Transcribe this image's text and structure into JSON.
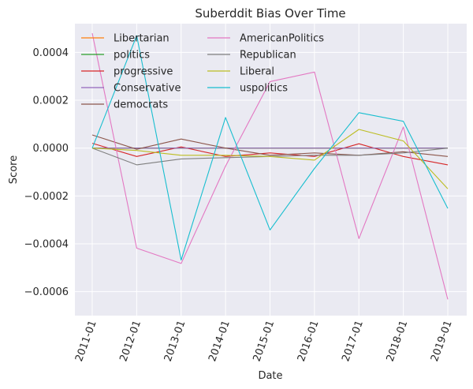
{
  "chart_data": {
    "type": "line",
    "title": "Suberddit Bias Over Time",
    "xlabel": "Date",
    "ylabel": "Score",
    "x": [
      "2011-01",
      "2012-01",
      "2013-01",
      "2014-01",
      "2015-01",
      "2016-01",
      "2017-01",
      "2018-01",
      "2019-01"
    ],
    "yticks": [
      "0.0004",
      "0.0002",
      "0.0000",
      "−0.0002",
      "−0.0004",
      "−0.0006"
    ],
    "ytick_values": [
      0.0004,
      0.0002,
      0.0,
      -0.0002,
      -0.0004,
      -0.0006
    ],
    "ylim": [
      -0.0007,
      0.00052
    ],
    "grid": true,
    "legend_position": "upper-left",
    "series": [
      {
        "name": "Libertarian",
        "color": "#ff7f0e",
        "values": [
          0.0,
          0.0,
          0.0,
          0.0,
          0.0,
          0.0,
          0.0,
          0.0,
          0.0
        ]
      },
      {
        "name": "politics",
        "color": "#2ca02c",
        "values": [
          0.0,
          0.0,
          0.0,
          0.0,
          0.0,
          0.0,
          0.0,
          0.0,
          0.0
        ]
      },
      {
        "name": "progressive",
        "color": "#d62728",
        "values": [
          2e-05,
          -3.5e-05,
          5e-06,
          -3.5e-05,
          -2e-05,
          -3.5e-05,
          1.8e-05,
          -3.5e-05,
          -7e-05
        ]
      },
      {
        "name": "Conservative",
        "color": "#9467bd",
        "values": [
          0.0,
          0.0,
          0.0,
          0.0,
          0.0,
          0.0,
          0.0,
          0.0,
          0.0
        ]
      },
      {
        "name": "democrats",
        "color": "#8c564b",
        "values": [
          5.5e-05,
          -5e-06,
          3.8e-05,
          0.0,
          -3e-05,
          -2e-05,
          -3e-05,
          -1.5e-05,
          -3.5e-05
        ]
      },
      {
        "name": "AmericanPolitics",
        "color": "#e377c2",
        "values": [
          0.00048,
          -0.000418,
          -0.000482,
          -7.5e-05,
          0.000278,
          0.000318,
          -0.000378,
          8.8e-05,
          -0.000632
        ]
      },
      {
        "name": "Republican",
        "color": "#7f7f7f",
        "values": [
          0.0,
          -7e-05,
          -4.5e-05,
          -4e-05,
          -3.5e-05,
          -3e-05,
          -3e-05,
          -2e-05,
          0.0
        ]
      },
      {
        "name": "Liberal",
        "color": "#bcbd22",
        "values": [
          0.0,
          -1e-05,
          -3e-05,
          -3e-05,
          -3.5e-05,
          -5e-05,
          7.8e-05,
          3e-05,
          -0.00017
        ]
      },
      {
        "name": "uspolitics",
        "color": "#17becf",
        "values": [
          0.0,
          0.00047,
          -0.000468,
          0.000128,
          -0.000342,
          -8.5e-05,
          0.000148,
          0.000112,
          -0.000252
        ]
      }
    ]
  }
}
